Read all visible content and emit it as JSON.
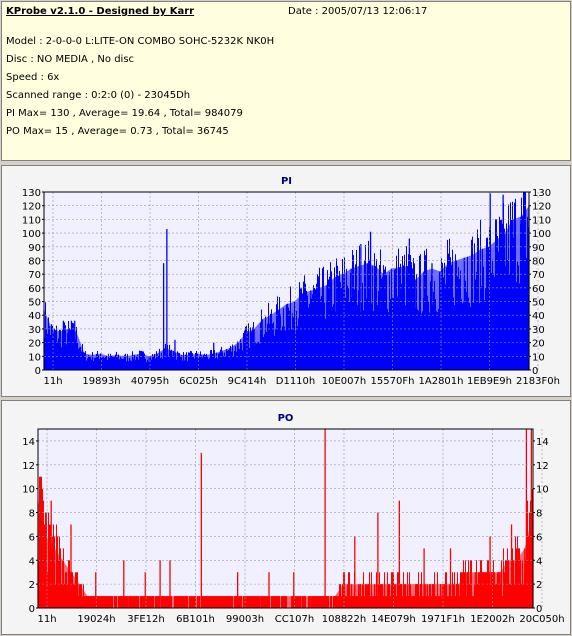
{
  "header": {
    "title": "KProbe v2.1.0 - Designed by Karr",
    "date": "Date : 2005/07/13 12:06:17",
    "lines": [
      "Model : 2-0-0-0 L:LITE-ON COMBO SOHC-5232K NK0H",
      "Disc : NO MEDIA , No disc",
      "Speed : 6x",
      "Scanned range : 0:2:0 (0) - 23045Dh",
      "PI Max= 130 , Average= 19.64 , Total= 984079",
      "PO Max= 15 , Average= 0.73 , Total= 36745"
    ]
  },
  "colors": {
    "pi": "#0000ff",
    "po": "#ff0000",
    "plot_bg": "#f0f0ff",
    "title": "#00007f"
  },
  "chart_data": [
    {
      "type": "area",
      "title": "PI",
      "ylim": [
        0,
        130
      ],
      "yticks": [
        0,
        10,
        20,
        30,
        40,
        50,
        60,
        70,
        80,
        90,
        100,
        110,
        120,
        130
      ],
      "xlim": [
        0,
        30
      ],
      "xticks": [
        "11h",
        "19893h",
        "40795h",
        "6C025h",
        "9C414h",
        "D1110h",
        "10E007h",
        "15570Fh",
        "1A2801h",
        "1EB9E9h",
        "2183F0h"
      ],
      "grid": true,
      "x": [
        0,
        0.5,
        1,
        1.5,
        2,
        2.5,
        3,
        3.5,
        4,
        4.5,
        5,
        5.5,
        6,
        6.5,
        7,
        7.5,
        8,
        8.5,
        9,
        9.5,
        10,
        10.5,
        11,
        11.5,
        12,
        12.5,
        13,
        13.5,
        14,
        14.5,
        15,
        15.5,
        16,
        16.5,
        17,
        17.5,
        18,
        18.5,
        19,
        19.5,
        20,
        20.5,
        21,
        21.5,
        22,
        22.5,
        23,
        23.5,
        24,
        24.5,
        25,
        25.5,
        26,
        26.5,
        27,
        27.5,
        28,
        28.5,
        29,
        29.5,
        30
      ],
      "values": [
        44,
        30,
        28,
        30,
        28,
        12,
        11,
        12,
        10,
        11,
        10,
        11,
        12,
        10,
        12,
        16,
        14,
        11,
        11,
        12,
        11,
        12,
        14,
        16,
        20,
        27,
        30,
        37,
        40,
        44,
        48,
        50,
        56,
        58,
        60,
        62,
        68,
        70,
        74,
        76,
        78,
        76,
        70,
        74,
        75,
        76,
        66,
        72,
        74,
        72,
        78,
        80,
        82,
        84,
        88,
        90,
        95,
        100,
        110,
        112,
        120
      ],
      "peaks": [
        {
          "x": 1.2,
          "value": 36
        },
        {
          "x": 1.7,
          "value": 36
        },
        {
          "x": 1.9,
          "value": 36
        },
        {
          "x": 7.6,
          "value": 103
        },
        {
          "x": 7.4,
          "value": 78
        },
        {
          "x": 8.1,
          "value": 22
        },
        {
          "x": 10.5,
          "value": 20
        },
        {
          "x": 20.2,
          "value": 101
        },
        {
          "x": 19.6,
          "value": 92
        },
        {
          "x": 22.6,
          "value": 96
        },
        {
          "x": 24.0,
          "value": 78
        },
        {
          "x": 27.6,
          "value": 129
        },
        {
          "x": 28.4,
          "value": 128
        },
        {
          "x": 29.7,
          "value": 130
        }
      ]
    },
    {
      "type": "bar",
      "title": "PO",
      "ylim": [
        0,
        15
      ],
      "yticks": [
        0,
        2,
        4,
        6,
        8,
        10,
        12,
        14
      ],
      "xlim": [
        0,
        30
      ],
      "xticks": [
        "11h",
        "19024h",
        "3FE12h",
        "6B101h",
        "99003h",
        "CC107h",
        "108822h",
        "14E079h",
        "1971F1h",
        "1E2002h",
        "20C050h"
      ],
      "grid": true,
      "x": [
        0,
        0.5,
        1,
        1.5,
        2,
        2.5,
        3,
        3.5,
        4,
        4.5,
        5,
        5.5,
        6,
        6.5,
        7,
        7.5,
        8,
        8.5,
        9,
        9.5,
        10,
        10.5,
        11,
        11.5,
        12,
        12.5,
        13,
        13.5,
        14,
        14.5,
        15,
        15.5,
        16,
        16.5,
        17,
        17.5,
        18,
        18.5,
        19,
        19.5,
        20,
        20.5,
        21,
        21.5,
        22,
        22.5,
        23,
        23.5,
        24,
        24.5,
        25,
        25.5,
        26,
        26.5,
        27,
        27.5,
        28,
        28.5,
        29,
        29.5,
        30
      ],
      "values": [
        9,
        6,
        5,
        4,
        3,
        2,
        1,
        1,
        1,
        1,
        1,
        1,
        1,
        1,
        1,
        1,
        1,
        1,
        1,
        1,
        1,
        1,
        1,
        1,
        1,
        1,
        1,
        1,
        1,
        1,
        1,
        1,
        1,
        1,
        1,
        1,
        1,
        2,
        2,
        2,
        2,
        2,
        2,
        2,
        2,
        2,
        2,
        2,
        2,
        2,
        2,
        2,
        3,
        3,
        3,
        3,
        3,
        4,
        4,
        5,
        8
      ],
      "peaks": [
        {
          "x": 0.1,
          "value": 11
        },
        {
          "x": 0.8,
          "value": 9
        },
        {
          "x": 2.0,
          "value": 7
        },
        {
          "x": 3.5,
          "value": 3
        },
        {
          "x": 5.2,
          "value": 4
        },
        {
          "x": 6.5,
          "value": 3
        },
        {
          "x": 7.4,
          "value": 4
        },
        {
          "x": 8.0,
          "value": 4
        },
        {
          "x": 9.9,
          "value": 13
        },
        {
          "x": 12.1,
          "value": 3
        },
        {
          "x": 14.0,
          "value": 3
        },
        {
          "x": 15.5,
          "value": 3
        },
        {
          "x": 17.4,
          "value": 15
        },
        {
          "x": 19.2,
          "value": 6
        },
        {
          "x": 20.6,
          "value": 8
        },
        {
          "x": 21.9,
          "value": 9
        },
        {
          "x": 23.4,
          "value": 5
        },
        {
          "x": 25.0,
          "value": 5
        },
        {
          "x": 27.4,
          "value": 6
        },
        {
          "x": 28.7,
          "value": 7
        },
        {
          "x": 29.6,
          "value": 15
        },
        {
          "x": 29.9,
          "value": 15
        }
      ]
    }
  ]
}
